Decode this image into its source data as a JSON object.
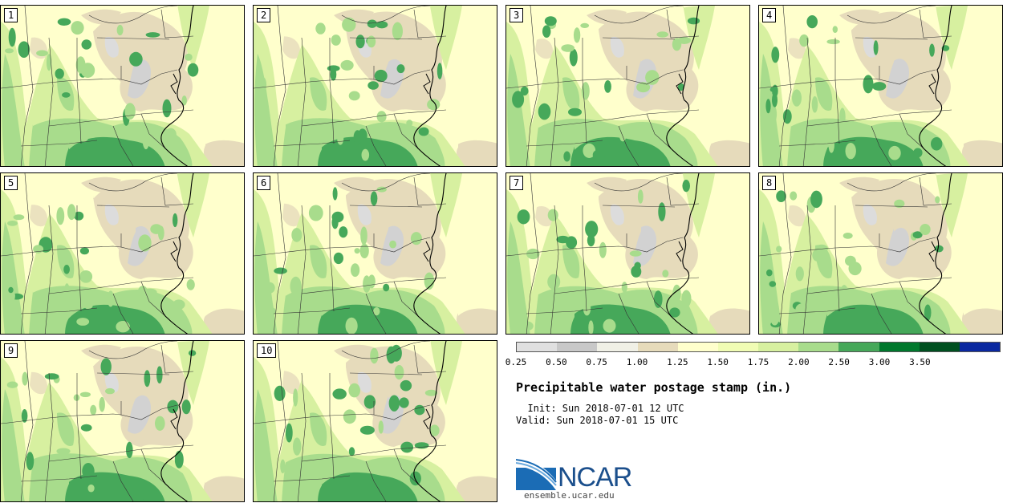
{
  "panels": [
    {
      "label": "1"
    },
    {
      "label": "2"
    },
    {
      "label": "3"
    },
    {
      "label": "4"
    },
    {
      "label": "5"
    },
    {
      "label": "6"
    },
    {
      "label": "7"
    },
    {
      "label": "8"
    },
    {
      "label": "9"
    },
    {
      "label": "10"
    }
  ],
  "colorbar": {
    "colors": [
      "#e0e0e0",
      "#c8c8c8",
      "#f0f0e6",
      "#e6dbbb",
      "#ffffcc",
      "#f0fcb4",
      "#d7f0a0",
      "#a8dc8c",
      "#46a85a",
      "#00782d",
      "#005020",
      "#0a28a0"
    ],
    "ticks": [
      "0.25",
      "0.50",
      "0.75",
      "1.00",
      "1.25",
      "1.50",
      "1.75",
      "2.00",
      "2.50",
      "3.00",
      "3.50"
    ]
  },
  "title": "Precipitable water postage stamp (in.)",
  "init": "  Init: Sun 2018-07-01 12 UTC",
  "valid": "Valid: Sun 2018-07-01 15 UTC",
  "logo": {
    "text": "NCAR",
    "url": "ensemble.ucar.edu"
  }
}
